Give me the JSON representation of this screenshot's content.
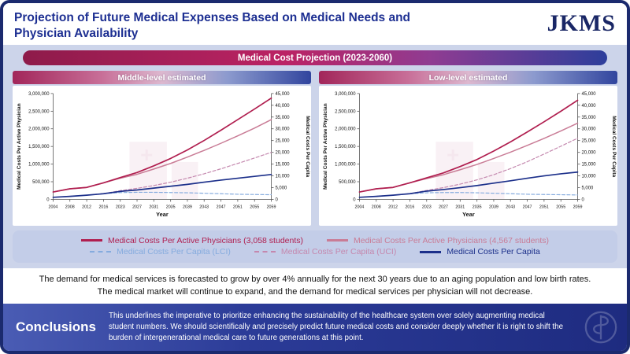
{
  "header": {
    "title": "Projection of Future Medical Expenses Based on Medical Needs and Physician Availability",
    "logo": "JKMS"
  },
  "banner": {
    "label": "Medical Cost Projection (2023-2060)"
  },
  "colors": {
    "frame_border": "#1b2a6e",
    "title_text": "#1d2f92",
    "band_background": "#ccd4ea",
    "banner_crimson": "#bb2364",
    "banner_blue": "#2d3e9b",
    "conclusions_blue": "#2b3b97"
  },
  "chart_data": [
    {
      "type": "line",
      "panel_title": "Middle-level estimated",
      "xlabel": "Year",
      "ylabel_left": "Medical Costs Per Active Physician",
      "ylabel_right": "Medical Costs Per Capita",
      "x_ticks": [
        "2004",
        "2008",
        "2012",
        "2016",
        "2023",
        "2027",
        "2031",
        "2035",
        "2039",
        "2043",
        "2047",
        "2051",
        "2055",
        "2059"
      ],
      "ylim_left": [
        0,
        3000000
      ],
      "ytick_step_left": 500000,
      "ylim_right": [
        0,
        45000
      ],
      "ytick_step_right": 5000,
      "grid": false,
      "series": [
        {
          "name": "Medical Costs Per Capita (LCI)",
          "axis": "right",
          "color": "#85abde",
          "dash": true,
          "width": 1.2,
          "values": [
            900,
            1300,
            1800,
            2400,
            2900,
            3000,
            3000,
            2900,
            2800,
            2600,
            2400,
            2200,
            2100,
            2000
          ]
        },
        {
          "name": "Medical Costs Per Capita (UCI)",
          "axis": "right",
          "color": "#c488ae",
          "dash": true,
          "width": 1.2,
          "values": [
            900,
            1300,
            1800,
            2400,
            3700,
            4700,
            5900,
            7300,
            9000,
            10900,
            13000,
            15300,
            17600,
            20000
          ]
        },
        {
          "name": "Medical Costs Per Active Physicians (4,567 students)",
          "axis": "left",
          "color": "#c97c96",
          "dash": false,
          "width": 1.5,
          "values": [
            210000,
            300000,
            340000,
            470000,
            600000,
            710000,
            860000,
            1020000,
            1200000,
            1390000,
            1590000,
            1800000,
            2020000,
            2260000
          ]
        },
        {
          "name": "Medical Costs Per Active Physicians (3,058 students)",
          "axis": "left",
          "color": "#b01e4f",
          "dash": false,
          "width": 1.7,
          "values": [
            210000,
            300000,
            340000,
            470000,
            620000,
            760000,
            950000,
            1160000,
            1400000,
            1670000,
            1960000,
            2260000,
            2560000,
            2870000
          ]
        },
        {
          "name": "Medical Costs Per Capita",
          "axis": "right",
          "color": "#1b2f8a",
          "dash": false,
          "width": 1.7,
          "values": [
            900,
            1300,
            1800,
            2400,
            3400,
            4000,
            4800,
            5600,
            6400,
            7300,
            8200,
            9000,
            9800,
            10600
          ]
        }
      ]
    },
    {
      "type": "line",
      "panel_title": "Low-level estimated",
      "xlabel": "Year",
      "ylabel_left": "Medical Costs Per Active Physician",
      "ylabel_right": "Medical Costs Per Capita",
      "x_ticks": [
        "2004",
        "2008",
        "2012",
        "2016",
        "2023",
        "2027",
        "2031",
        "2035",
        "2039",
        "2043",
        "2047",
        "2051",
        "2055",
        "2059"
      ],
      "ylim_left": [
        0,
        3000000
      ],
      "ytick_step_left": 500000,
      "ylim_right": [
        0,
        45000
      ],
      "ytick_step_right": 5000,
      "grid": false,
      "series": [
        {
          "name": "Medical Costs Per Capita (LCI)",
          "axis": "right",
          "color": "#85abde",
          "dash": true,
          "width": 1.2,
          "values": [
            900,
            1300,
            1800,
            2400,
            2800,
            2900,
            2900,
            2800,
            2600,
            2400,
            2200,
            2100,
            2000,
            1900
          ]
        },
        {
          "name": "Medical Costs Per Capita (UCI)",
          "axis": "right",
          "color": "#c488ae",
          "dash": true,
          "width": 1.2,
          "values": [
            900,
            1300,
            1800,
            2400,
            3800,
            5000,
            6500,
            8300,
            10500,
            13100,
            16000,
            19300,
            22600,
            26000
          ]
        },
        {
          "name": "Medical Costs Per Active Physicians (4,567 students)",
          "axis": "left",
          "color": "#c97c96",
          "dash": false,
          "width": 1.5,
          "values": [
            210000,
            300000,
            340000,
            470000,
            590000,
            700000,
            840000,
            990000,
            1160000,
            1340000,
            1530000,
            1730000,
            1940000,
            2160000
          ]
        },
        {
          "name": "Medical Costs Per Active Physicians (3,058 students)",
          "axis": "left",
          "color": "#b01e4f",
          "dash": false,
          "width": 1.7,
          "values": [
            210000,
            300000,
            340000,
            470000,
            610000,
            750000,
            930000,
            1130000,
            1370000,
            1630000,
            1910000,
            2200000,
            2500000,
            2810000
          ]
        },
        {
          "name": "Medical Costs Per Capita",
          "axis": "right",
          "color": "#1b2f8a",
          "dash": false,
          "width": 1.7,
          "values": [
            900,
            1300,
            1800,
            2400,
            3500,
            4200,
            5000,
            5900,
            6900,
            7900,
            9000,
            10000,
            10900,
            11600
          ]
        }
      ]
    }
  ],
  "legend": {
    "items": [
      {
        "label": "Medical Costs Per Active Physicians (3,058 students)",
        "color": "#b01e4f",
        "dash": false
      },
      {
        "label": "Medical Costs Per Active Physicians (4,567 students)",
        "color": "#c97c96",
        "dash": false
      },
      {
        "label": "Medical Costs Per Capita (LCI)",
        "color": "#85abde",
        "dash": true
      },
      {
        "label": "Medical Costs Per Capita (UCI)",
        "color": "#c488ae",
        "dash": true
      },
      {
        "label": "Medical Costs Per Capita",
        "color": "#1b2f8a",
        "dash": false
      }
    ]
  },
  "summary": {
    "line1": "The demand for medical services is forecasted to grow by over 4% annually for the next 30 years due to an aging population and low birth rates.",
    "line2": "The medical market will continue to expand, and the demand for medical services per physician will not decrease."
  },
  "conclusions": {
    "heading": "Conclusions",
    "body": "This underlines the imperative to prioritize enhancing the sustainability of the healthcare system over solely augmenting medical student numbers. We should scientifically and precisely predict future medical costs and consider deeply whether it is right to shift the burden of intergenerational medical care to future generations at this point."
  }
}
